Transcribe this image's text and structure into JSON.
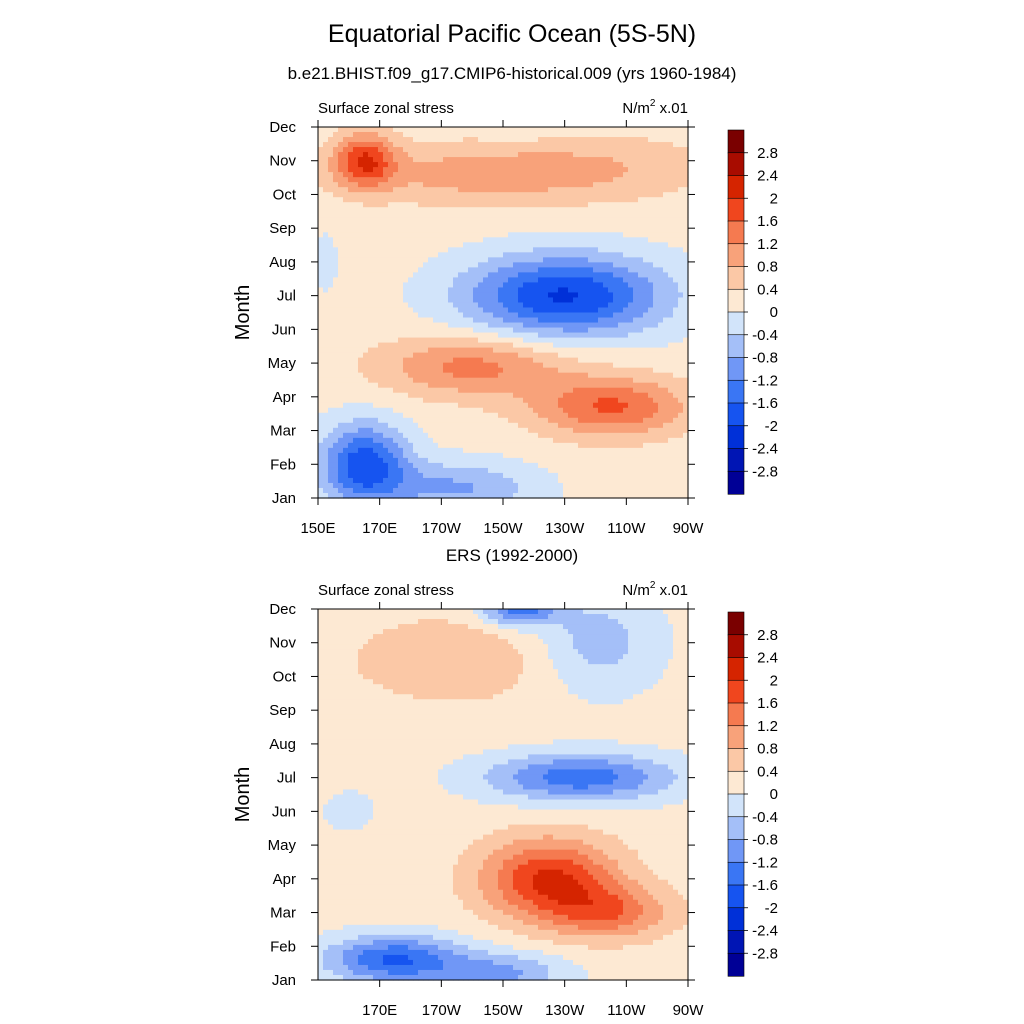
{
  "page": {
    "title": "Equatorial Pacific Ocean (5S-5N)"
  },
  "chart_data": [
    {
      "type": "heatmap",
      "subtitle": "b.e21.BHIST.f09_g17.CMIP6-historical.009 (yrs 1960-1984)",
      "left_label": "Surface zonal stress",
      "units_base": "N/m",
      "units_sup": "2",
      "units_scale": "x.01",
      "ylabel": "Month",
      "xlabel": "",
      "x_ticks": [
        "150E",
        "170E",
        "170W",
        "150W",
        "130W",
        "110W",
        "90W"
      ],
      "y_ticks": [
        "Jan",
        "Feb",
        "Mar",
        "Apr",
        "May",
        "Jun",
        "Jul",
        "Aug",
        "Sep",
        "Oct",
        "Nov",
        "Dec"
      ],
      "xlim": [
        150,
        270
      ],
      "ylim": [
        1,
        12
      ],
      "contour_levels": [
        -2.8,
        -2.4,
        -2,
        -1.6,
        -1.2,
        -0.8,
        -0.4,
        0,
        0.4,
        0.8,
        1.2,
        1.6,
        2,
        2.4,
        2.8
      ],
      "features": [
        {
          "lon": 165,
          "month": 11,
          "value": 1.7,
          "slon": 10,
          "smon": 0.8
        },
        {
          "lon": 200,
          "month": 10.6,
          "value": 0.8,
          "slon": 40,
          "smon": 0.9
        },
        {
          "lon": 245,
          "month": 10.8,
          "value": 0.5,
          "slon": 35,
          "smon": 1.0
        },
        {
          "lon": 230,
          "month": 7,
          "value": -2.2,
          "slon": 32,
          "smon": 1.2
        },
        {
          "lon": 200,
          "month": 4.9,
          "value": 1.2,
          "slon": 30,
          "smon": 0.9
        },
        {
          "lon": 245,
          "month": 3.7,
          "value": 1.5,
          "slon": 25,
          "smon": 0.9
        },
        {
          "lon": 165,
          "month": 2,
          "value": -2.0,
          "slon": 14,
          "smon": 1.2
        },
        {
          "lon": 195,
          "month": 1.3,
          "value": -1.0,
          "slon": 25,
          "smon": 0.8
        },
        {
          "lon": 152,
          "month": 8,
          "value": -0.3,
          "slon": 5,
          "smon": 1.0
        },
        {
          "lon": 215,
          "month": 12,
          "value": -0.2,
          "slon": 10,
          "smon": 0.5
        }
      ],
      "colorbar_labels": [
        "2.8",
        "2.4",
        "2",
        "1.6",
        "1.2",
        "0.8",
        "0.4",
        "0",
        "-0.4",
        "-0.8",
        "-1.2",
        "-1.6",
        "-2",
        "-2.4",
        "-2.8"
      ]
    },
    {
      "type": "heatmap",
      "subtitle": "ERS (1992-2000)",
      "left_label": "Surface zonal stress",
      "units_base": "N/m",
      "units_sup": "2",
      "units_scale": "x.01",
      "ylabel": "Month",
      "xlabel": "",
      "x_ticks": [
        "170E",
        "170W",
        "150W",
        "130W",
        "110W",
        "90W"
      ],
      "y_ticks": [
        "Jan",
        "Feb",
        "Mar",
        "Apr",
        "May",
        "Jun",
        "Jul",
        "Aug",
        "Sep",
        "Oct",
        "Nov",
        "Dec"
      ],
      "xlim": [
        150,
        270
      ],
      "ylim": [
        1,
        12
      ],
      "contour_levels": [
        -2.8,
        -2.4,
        -2,
        -1.6,
        -1.2,
        -0.8,
        -0.4,
        0,
        0.4,
        0.8,
        1.2,
        1.6,
        2,
        2.4,
        2.8
      ],
      "features": [
        {
          "lon": 215,
          "month": 12,
          "value": -1.6,
          "slon": 12,
          "smon": 0.5
        },
        {
          "lon": 240,
          "month": 11,
          "value": -0.8,
          "slon": 20,
          "smon": 1.5
        },
        {
          "lon": 195,
          "month": 10.5,
          "value": 0.6,
          "slon": 35,
          "smon": 1.3
        },
        {
          "lon": 235,
          "month": 7,
          "value": -1.6,
          "slon": 30,
          "smon": 0.7
        },
        {
          "lon": 225,
          "month": 4,
          "value": 1.9,
          "slon": 22,
          "smon": 1.2
        },
        {
          "lon": 245,
          "month": 3,
          "value": 1.2,
          "slon": 20,
          "smon": 0.8
        },
        {
          "lon": 175,
          "month": 1.6,
          "value": -1.8,
          "slon": 22,
          "smon": 0.7
        },
        {
          "lon": 210,
          "month": 1.2,
          "value": -1.0,
          "slon": 20,
          "smon": 0.6
        },
        {
          "lon": 160,
          "month": 6,
          "value": -0.4,
          "slon": 8,
          "smon": 0.6
        }
      ],
      "colorbar_labels": [
        "2.8",
        "2.4",
        "2",
        "1.6",
        "1.2",
        "0.8",
        "0.4",
        "0",
        "-0.4",
        "-0.8",
        "-1.2",
        "-1.6",
        "-2",
        "-2.4",
        "-2.8"
      ]
    }
  ],
  "colors": {
    "palette": [
      "#000096",
      "#0015b4",
      "#0030d8",
      "#1654f0",
      "#3a76f4",
      "#7097f6",
      "#a4bff8",
      "#d2e4fa",
      "#fde9d3",
      "#fbc8a6",
      "#f8a27a",
      "#f57a50",
      "#f0461e",
      "#d52400",
      "#a80c00",
      "#7a0000"
    ]
  }
}
